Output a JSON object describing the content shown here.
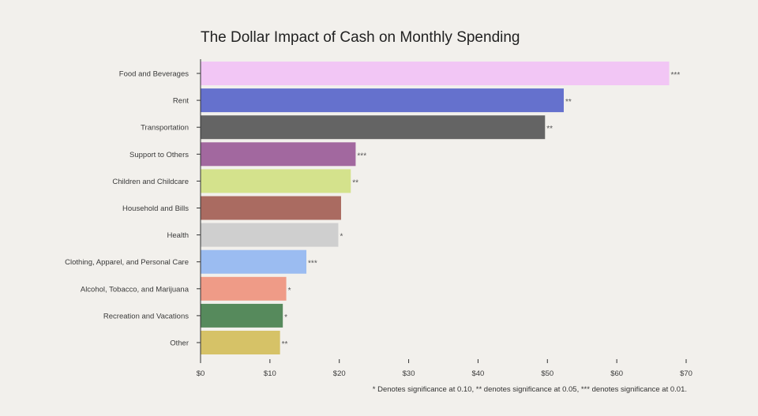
{
  "chart_data": {
    "type": "bar",
    "orientation": "horizontal",
    "title": "The Dollar Impact of Cash on Monthly Spending",
    "xlabel": "",
    "ylabel": "",
    "xlim": [
      0,
      70
    ],
    "x_ticks": [
      "$0",
      "$10",
      "$20",
      "$30",
      "$40",
      "$50",
      "$60",
      "$70"
    ],
    "grid": false,
    "categories": [
      "Food and Beverages",
      "Rent",
      "Transportation",
      "Support to Others",
      "Children and Childcare",
      "Household and Bills",
      "Health",
      "Clothing, Apparel, and Personal Care",
      "Alcohol, Tobacco, and Marijuana",
      "Recreation and Vacations",
      "Other"
    ],
    "values": [
      67.5,
      52.3,
      49.6,
      22.3,
      21.6,
      20.2,
      19.8,
      15.2,
      12.3,
      11.8,
      11.4
    ],
    "significance": [
      "***",
      "**",
      "**",
      "***",
      "**",
      "",
      "*",
      "***",
      "*",
      "*",
      "**"
    ],
    "colors": [
      "#f2c6f5",
      "#6571cd",
      "#646464",
      "#a2689f",
      "#d4e28c",
      "#aa6b61",
      "#cfcfcf",
      "#9bbcf1",
      "#ef9b87",
      "#568a5c",
      "#d6c267"
    ],
    "footnote": "* Denotes significance at 0.10, ** denotes significance at 0.05, *** denotes significance at 0.01."
  }
}
